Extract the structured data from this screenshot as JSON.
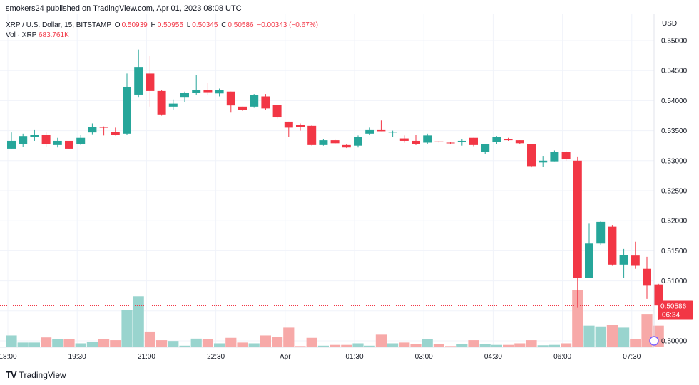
{
  "header": {
    "publisher_line": "smokers24 published on TradingView.com, Apr 01, 2023 08:08 UTC"
  },
  "legend": {
    "symbol": "XRP / U.S. Dollar, 15, BITSTAMP",
    "o_label": "O",
    "o_value": "0.50939",
    "h_label": "H",
    "h_value": "0.50955",
    "l_label": "L",
    "l_value": "0.50345",
    "c_label": "C",
    "c_value": "0.50586",
    "change": "−0.00343 (−0.67%)",
    "vol_label": "Vol · XRP",
    "vol_value": "683.761K"
  },
  "axis": {
    "currency": "USD"
  },
  "price_tag": {
    "price": "0.50586",
    "countdown": "06:34"
  },
  "footer": {
    "brand": "TradingView"
  },
  "colors": {
    "up": "#26a69a",
    "down": "#f23645",
    "vol_up": "#99d4ce",
    "vol_down": "#f7a9a8",
    "grid": "#f0f3fa",
    "axis_text": "#131722"
  },
  "chart_data": {
    "type": "candlestick",
    "ylim": [
      0.4985,
      0.5515
    ],
    "y_ticks": [
      "0.55000",
      "0.54500",
      "0.54000",
      "0.53500",
      "0.53000",
      "0.52500",
      "0.52000",
      "0.51500",
      "0.51000",
      "0.50500",
      "0.50000"
    ],
    "x_ticks": [
      {
        "label": "18:00",
        "index": 0
      },
      {
        "label": "19:30",
        "index": 6
      },
      {
        "label": "21:00",
        "index": 12
      },
      {
        "label": "22:30",
        "index": 18
      },
      {
        "label": "Apr",
        "index": 24
      },
      {
        "label": "01:30",
        "index": 30
      },
      {
        "label": "03:00",
        "index": 36
      },
      {
        "label": "04:30",
        "index": 42
      },
      {
        "label": "06:00",
        "index": 48
      },
      {
        "label": "07:30",
        "index": 54
      }
    ],
    "candles": [
      {
        "o": 0.532,
        "h": 0.5347,
        "l": 0.532,
        "c": 0.5333,
        "v": 0.3
      },
      {
        "o": 0.5328,
        "h": 0.5345,
        "l": 0.5323,
        "c": 0.5341,
        "v": 0.12
      },
      {
        "o": 0.534,
        "h": 0.5352,
        "l": 0.5333,
        "c": 0.5343,
        "v": 0.12
      },
      {
        "o": 0.5343,
        "h": 0.5347,
        "l": 0.5323,
        "c": 0.5327,
        "v": 0.25
      },
      {
        "o": 0.5326,
        "h": 0.5338,
        "l": 0.5322,
        "c": 0.5333,
        "v": 0.2
      },
      {
        "o": 0.5333,
        "h": 0.5333,
        "l": 0.5319,
        "c": 0.532,
        "v": 0.2
      },
      {
        "o": 0.5328,
        "h": 0.5343,
        "l": 0.5326,
        "c": 0.5338,
        "v": 0.1
      },
      {
        "o": 0.5347,
        "h": 0.5362,
        "l": 0.5344,
        "c": 0.5356,
        "v": 0.14
      },
      {
        "o": 0.5356,
        "h": 0.5357,
        "l": 0.5342,
        "c": 0.5355,
        "v": 0.2
      },
      {
        "o": 0.5348,
        "h": 0.5355,
        "l": 0.5342,
        "c": 0.5343,
        "v": 0.18
      },
      {
        "o": 0.5345,
        "h": 0.5445,
        "l": 0.5343,
        "c": 0.5423,
        "v": 0.95
      },
      {
        "o": 0.541,
        "h": 0.5485,
        "l": 0.5405,
        "c": 0.5456,
        "v": 1.3
      },
      {
        "o": 0.5445,
        "h": 0.5475,
        "l": 0.539,
        "c": 0.5416,
        "v": 0.4
      },
      {
        "o": 0.5416,
        "h": 0.5418,
        "l": 0.5375,
        "c": 0.5377,
        "v": 0.18
      },
      {
        "o": 0.539,
        "h": 0.5402,
        "l": 0.5385,
        "c": 0.5395,
        "v": 0.16
      },
      {
        "o": 0.5405,
        "h": 0.5415,
        "l": 0.5398,
        "c": 0.5413,
        "v": 0.04
      },
      {
        "o": 0.5413,
        "h": 0.5443,
        "l": 0.541,
        "c": 0.5418,
        "v": 0.22
      },
      {
        "o": 0.5418,
        "h": 0.5429,
        "l": 0.541,
        "c": 0.5414,
        "v": 0.2
      },
      {
        "o": 0.5412,
        "h": 0.542,
        "l": 0.5407,
        "c": 0.5418,
        "v": 0.1
      },
      {
        "o": 0.5415,
        "h": 0.5415,
        "l": 0.538,
        "c": 0.5392,
        "v": 0.24
      },
      {
        "o": 0.539,
        "h": 0.539,
        "l": 0.5383,
        "c": 0.5385,
        "v": 0.12
      },
      {
        "o": 0.539,
        "h": 0.5411,
        "l": 0.5388,
        "c": 0.5409,
        "v": 0.1
      },
      {
        "o": 0.5407,
        "h": 0.5411,
        "l": 0.5385,
        "c": 0.5387,
        "v": 0.3
      },
      {
        "o": 0.5393,
        "h": 0.5393,
        "l": 0.537,
        "c": 0.5372,
        "v": 0.26
      },
      {
        "o": 0.5365,
        "h": 0.5365,
        "l": 0.5339,
        "c": 0.5355,
        "v": 0.5
      },
      {
        "o": 0.5359,
        "h": 0.5362,
        "l": 0.535,
        "c": 0.5356,
        "v": 0.03
      },
      {
        "o": 0.5358,
        "h": 0.536,
        "l": 0.5325,
        "c": 0.5326,
        "v": 0.24
      },
      {
        "o": 0.5326,
        "h": 0.5336,
        "l": 0.5325,
        "c": 0.5334,
        "v": 0.04
      },
      {
        "o": 0.5334,
        "h": 0.5335,
        "l": 0.5328,
        "c": 0.5329,
        "v": 0.06
      },
      {
        "o": 0.5326,
        "h": 0.5327,
        "l": 0.5321,
        "c": 0.5322,
        "v": 0.06
      },
      {
        "o": 0.5325,
        "h": 0.5342,
        "l": 0.5322,
        "c": 0.534,
        "v": 0.1
      },
      {
        "o": 0.5345,
        "h": 0.5355,
        "l": 0.5343,
        "c": 0.5352,
        "v": 0.04
      },
      {
        "o": 0.5352,
        "h": 0.5367,
        "l": 0.5349,
        "c": 0.5349,
        "v": 0.32
      },
      {
        "o": 0.5348,
        "h": 0.535,
        "l": 0.534,
        "c": 0.5348,
        "v": 0.1
      },
      {
        "o": 0.5337,
        "h": 0.5342,
        "l": 0.533,
        "c": 0.5333,
        "v": 0.12
      },
      {
        "o": 0.5333,
        "h": 0.5343,
        "l": 0.5326,
        "c": 0.5328,
        "v": 0.09
      },
      {
        "o": 0.533,
        "h": 0.5345,
        "l": 0.5328,
        "c": 0.5342,
        "v": 0.2
      },
      {
        "o": 0.5332,
        "h": 0.5333,
        "l": 0.533,
        "c": 0.5331,
        "v": 0.08
      },
      {
        "o": 0.533,
        "h": 0.5331,
        "l": 0.5328,
        "c": 0.5329,
        "v": 0.03
      },
      {
        "o": 0.5331,
        "h": 0.5336,
        "l": 0.5325,
        "c": 0.5333,
        "v": 0.08
      },
      {
        "o": 0.5338,
        "h": 0.5338,
        "l": 0.5324,
        "c": 0.5326,
        "v": 0.18
      },
      {
        "o": 0.5315,
        "h": 0.5327,
        "l": 0.5311,
        "c": 0.5327,
        "v": 0.08
      },
      {
        "o": 0.5331,
        "h": 0.5341,
        "l": 0.5328,
        "c": 0.534,
        "v": 0.06
      },
      {
        "o": 0.5336,
        "h": 0.5338,
        "l": 0.5333,
        "c": 0.5334,
        "v": 0.06
      },
      {
        "o": 0.5334,
        "h": 0.5334,
        "l": 0.5328,
        "c": 0.5329,
        "v": 0.1
      },
      {
        "o": 0.5328,
        "h": 0.5328,
        "l": 0.5289,
        "c": 0.5291,
        "v": 0.18
      },
      {
        "o": 0.5297,
        "h": 0.5308,
        "l": 0.529,
        "c": 0.53,
        "v": 0.05
      },
      {
        "o": 0.5299,
        "h": 0.5317,
        "l": 0.5299,
        "c": 0.5315,
        "v": 0.06
      },
      {
        "o": 0.5315,
        "h": 0.5316,
        "l": 0.53,
        "c": 0.5303,
        "v": 0.1
      },
      {
        "o": 0.53,
        "h": 0.5307,
        "l": 0.5055,
        "c": 0.5105,
        "v": 1.45
      },
      {
        "o": 0.5105,
        "h": 0.5195,
        "l": 0.5105,
        "c": 0.5162,
        "v": 0.55
      },
      {
        "o": 0.5162,
        "h": 0.52,
        "l": 0.516,
        "c": 0.5198,
        "v": 0.53
      },
      {
        "o": 0.519,
        "h": 0.5193,
        "l": 0.5125,
        "c": 0.5127,
        "v": 0.58
      },
      {
        "o": 0.5127,
        "h": 0.5153,
        "l": 0.5105,
        "c": 0.5143,
        "v": 0.5
      },
      {
        "o": 0.5142,
        "h": 0.5165,
        "l": 0.512,
        "c": 0.5125,
        "v": 0.2
      },
      {
        "o": 0.512,
        "h": 0.514,
        "l": 0.507,
        "c": 0.5092,
        "v": 0.85
      },
      {
        "o": 0.5094,
        "h": 0.5095,
        "l": 0.5035,
        "c": 0.5059,
        "v": 0.55
      }
    ]
  }
}
